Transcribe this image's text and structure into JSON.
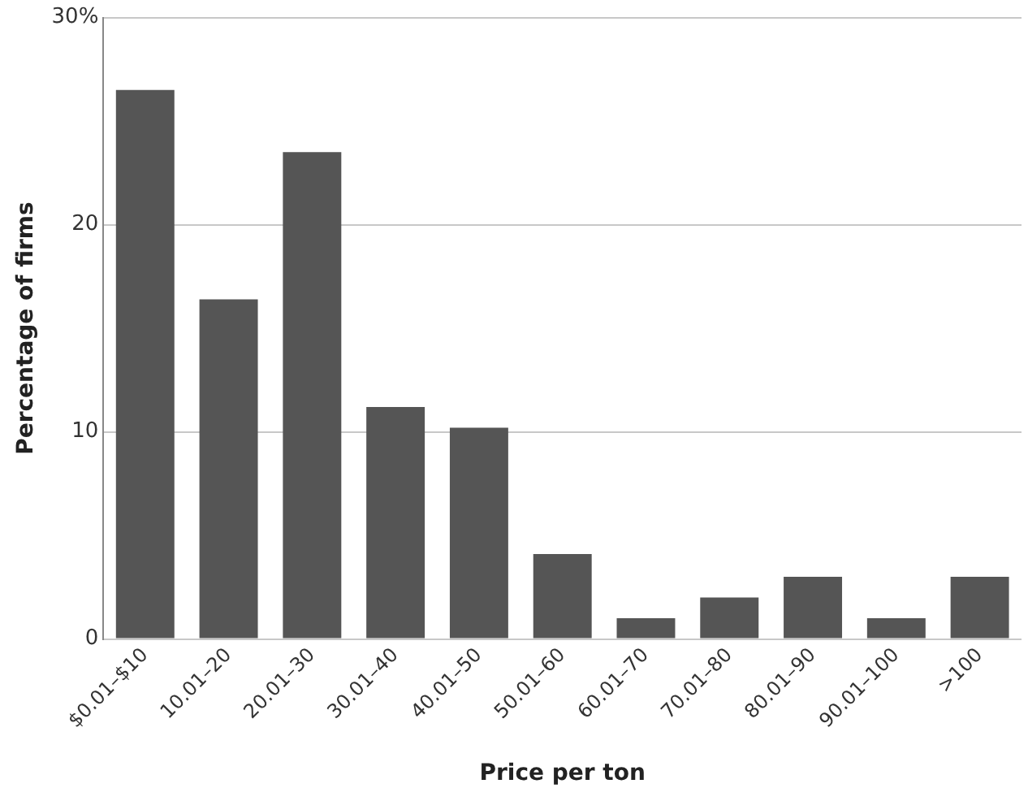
{
  "chart_data": {
    "type": "bar",
    "xlabel": "Price per ton",
    "ylabel": "Percentage of firms",
    "categories": [
      "$0.01–$10",
      "10.01–20",
      "20.01–30",
      "30.01–40",
      "40.01–50",
      "50.01–60",
      "60.01–70",
      "70.01–80",
      "80.01–90",
      "90.01–100",
      ">100"
    ],
    "values": [
      26.5,
      16.4,
      23.5,
      11.2,
      10.2,
      4.1,
      1,
      2,
      3,
      1,
      3
    ],
    "color": "#555555",
    "ylim": [
      0,
      30
    ],
    "yticks": [
      0,
      10,
      20,
      {
        "value": 30,
        "label": "30%"
      }
    ],
    "grid": "y",
    "legend": false
  }
}
